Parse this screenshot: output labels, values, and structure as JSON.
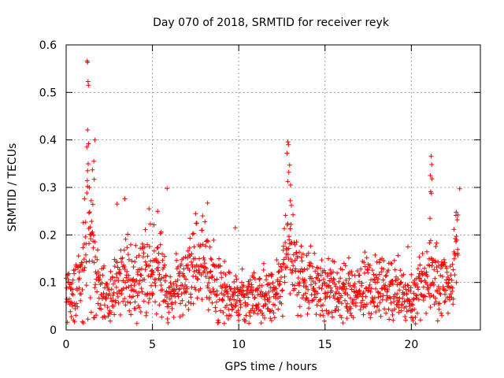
{
  "chart_data": {
    "type": "scatter",
    "title": "Day 070 of 2018, SRMTID for receiver reyk",
    "xlabel": "GPS time / hours",
    "ylabel": "SRMTID / TECUs",
    "xlim": [
      0,
      24
    ],
    "ylim": [
      0,
      0.6
    ],
    "x_ticks": [
      0,
      5,
      10,
      15,
      20
    ],
    "x_tick_labels": [
      "0",
      "5",
      "10",
      "15",
      "20"
    ],
    "y_ticks": [
      0,
      0.1,
      0.2,
      0.3,
      0.4,
      0.5,
      0.6
    ],
    "y_tick_labels": [
      "0",
      "0.1",
      "0.2",
      "0.3",
      "0.4",
      "0.5",
      "0.6"
    ],
    "grid": true,
    "marker": "+",
    "color": "#ff0000",
    "series": [
      {
        "name": "SRMTID",
        "profile": {
          "hours": [
            0.0,
            0.5,
            1.0,
            1.2,
            1.3,
            1.4,
            1.6,
            1.8,
            2.0,
            2.5,
            3.0,
            3.5,
            4.0,
            4.5,
            5.0,
            5.5,
            6.0,
            6.5,
            7.0,
            7.5,
            8.0,
            8.5,
            9.0,
            9.5,
            10.0,
            11.0,
            12.0,
            12.5,
            12.8,
            13.0,
            13.3,
            13.8,
            14.5,
            15.0,
            16.0,
            17.0,
            18.0,
            19.0,
            19.8,
            20.2,
            20.5,
            21.0,
            21.3,
            21.6,
            22.0,
            22.3,
            22.5,
            22.7
          ],
          "median": [
            0.08,
            0.085,
            0.13,
            0.2,
            0.25,
            0.2,
            0.15,
            0.1,
            0.08,
            0.07,
            0.1,
            0.12,
            0.1,
            0.13,
            0.11,
            0.12,
            0.06,
            0.1,
            0.12,
            0.15,
            0.13,
            0.12,
            0.09,
            0.07,
            0.065,
            0.07,
            0.08,
            0.1,
            0.2,
            0.15,
            0.11,
            0.09,
            0.09,
            0.085,
            0.08,
            0.085,
            0.085,
            0.08,
            0.07,
            0.06,
            0.1,
            0.12,
            0.12,
            0.09,
            0.09,
            0.1,
            0.16,
            0.14
          ]
        },
        "peaks": [
          {
            "x": 1.22,
            "y": 0.566
          },
          {
            "x": 1.24,
            "y": 0.563
          },
          {
            "x": 1.27,
            "y": 0.523
          },
          {
            "x": 1.29,
            "y": 0.515
          },
          {
            "x": 1.24,
            "y": 0.421
          },
          {
            "x": 1.3,
            "y": 0.392
          },
          {
            "x": 1.2,
            "y": 0.385
          },
          {
            "x": 1.66,
            "y": 0.4
          },
          {
            "x": 1.6,
            "y": 0.355
          },
          {
            "x": 1.52,
            "y": 0.337
          },
          {
            "x": 1.63,
            "y": 0.317
          },
          {
            "x": 1.35,
            "y": 0.3
          },
          {
            "x": 1.45,
            "y": 0.272
          },
          {
            "x": 12.85,
            "y": 0.396
          },
          {
            "x": 12.88,
            "y": 0.39
          },
          {
            "x": 12.8,
            "y": 0.372
          },
          {
            "x": 12.95,
            "y": 0.347
          },
          {
            "x": 12.9,
            "y": 0.332
          },
          {
            "x": 13.0,
            "y": 0.305
          },
          {
            "x": 12.98,
            "y": 0.272
          },
          {
            "x": 13.05,
            "y": 0.262
          },
          {
            "x": 21.15,
            "y": 0.366
          },
          {
            "x": 21.18,
            "y": 0.348
          },
          {
            "x": 21.1,
            "y": 0.325
          },
          {
            "x": 21.2,
            "y": 0.318
          },
          {
            "x": 21.12,
            "y": 0.291
          },
          {
            "x": 21.16,
            "y": 0.287
          },
          {
            "x": 21.08,
            "y": 0.235
          },
          {
            "x": 22.8,
            "y": 0.297
          },
          {
            "x": 22.6,
            "y": 0.248
          },
          {
            "x": 22.7,
            "y": 0.242
          },
          {
            "x": 5.85,
            "y": 0.298
          },
          {
            "x": 3.4,
            "y": 0.276
          },
          {
            "x": 2.95,
            "y": 0.265
          },
          {
            "x": 8.2,
            "y": 0.267
          },
          {
            "x": 7.5,
            "y": 0.245
          },
          {
            "x": 4.8,
            "y": 0.255
          },
          {
            "x": 5.3,
            "y": 0.25
          },
          {
            "x": 9.8,
            "y": 0.215
          },
          {
            "x": 19.8,
            "y": 0.175
          },
          {
            "x": 15.2,
            "y": 0.15
          },
          {
            "x": 16.1,
            "y": 0.14
          },
          {
            "x": 10.0,
            "y": 0.02
          },
          {
            "x": 5.9,
            "y": 0.015
          },
          {
            "x": 20.1,
            "y": 0.02
          },
          {
            "x": 11.5,
            "y": 0.025
          },
          {
            "x": 0.3,
            "y": 0.028
          }
        ]
      }
    ]
  }
}
